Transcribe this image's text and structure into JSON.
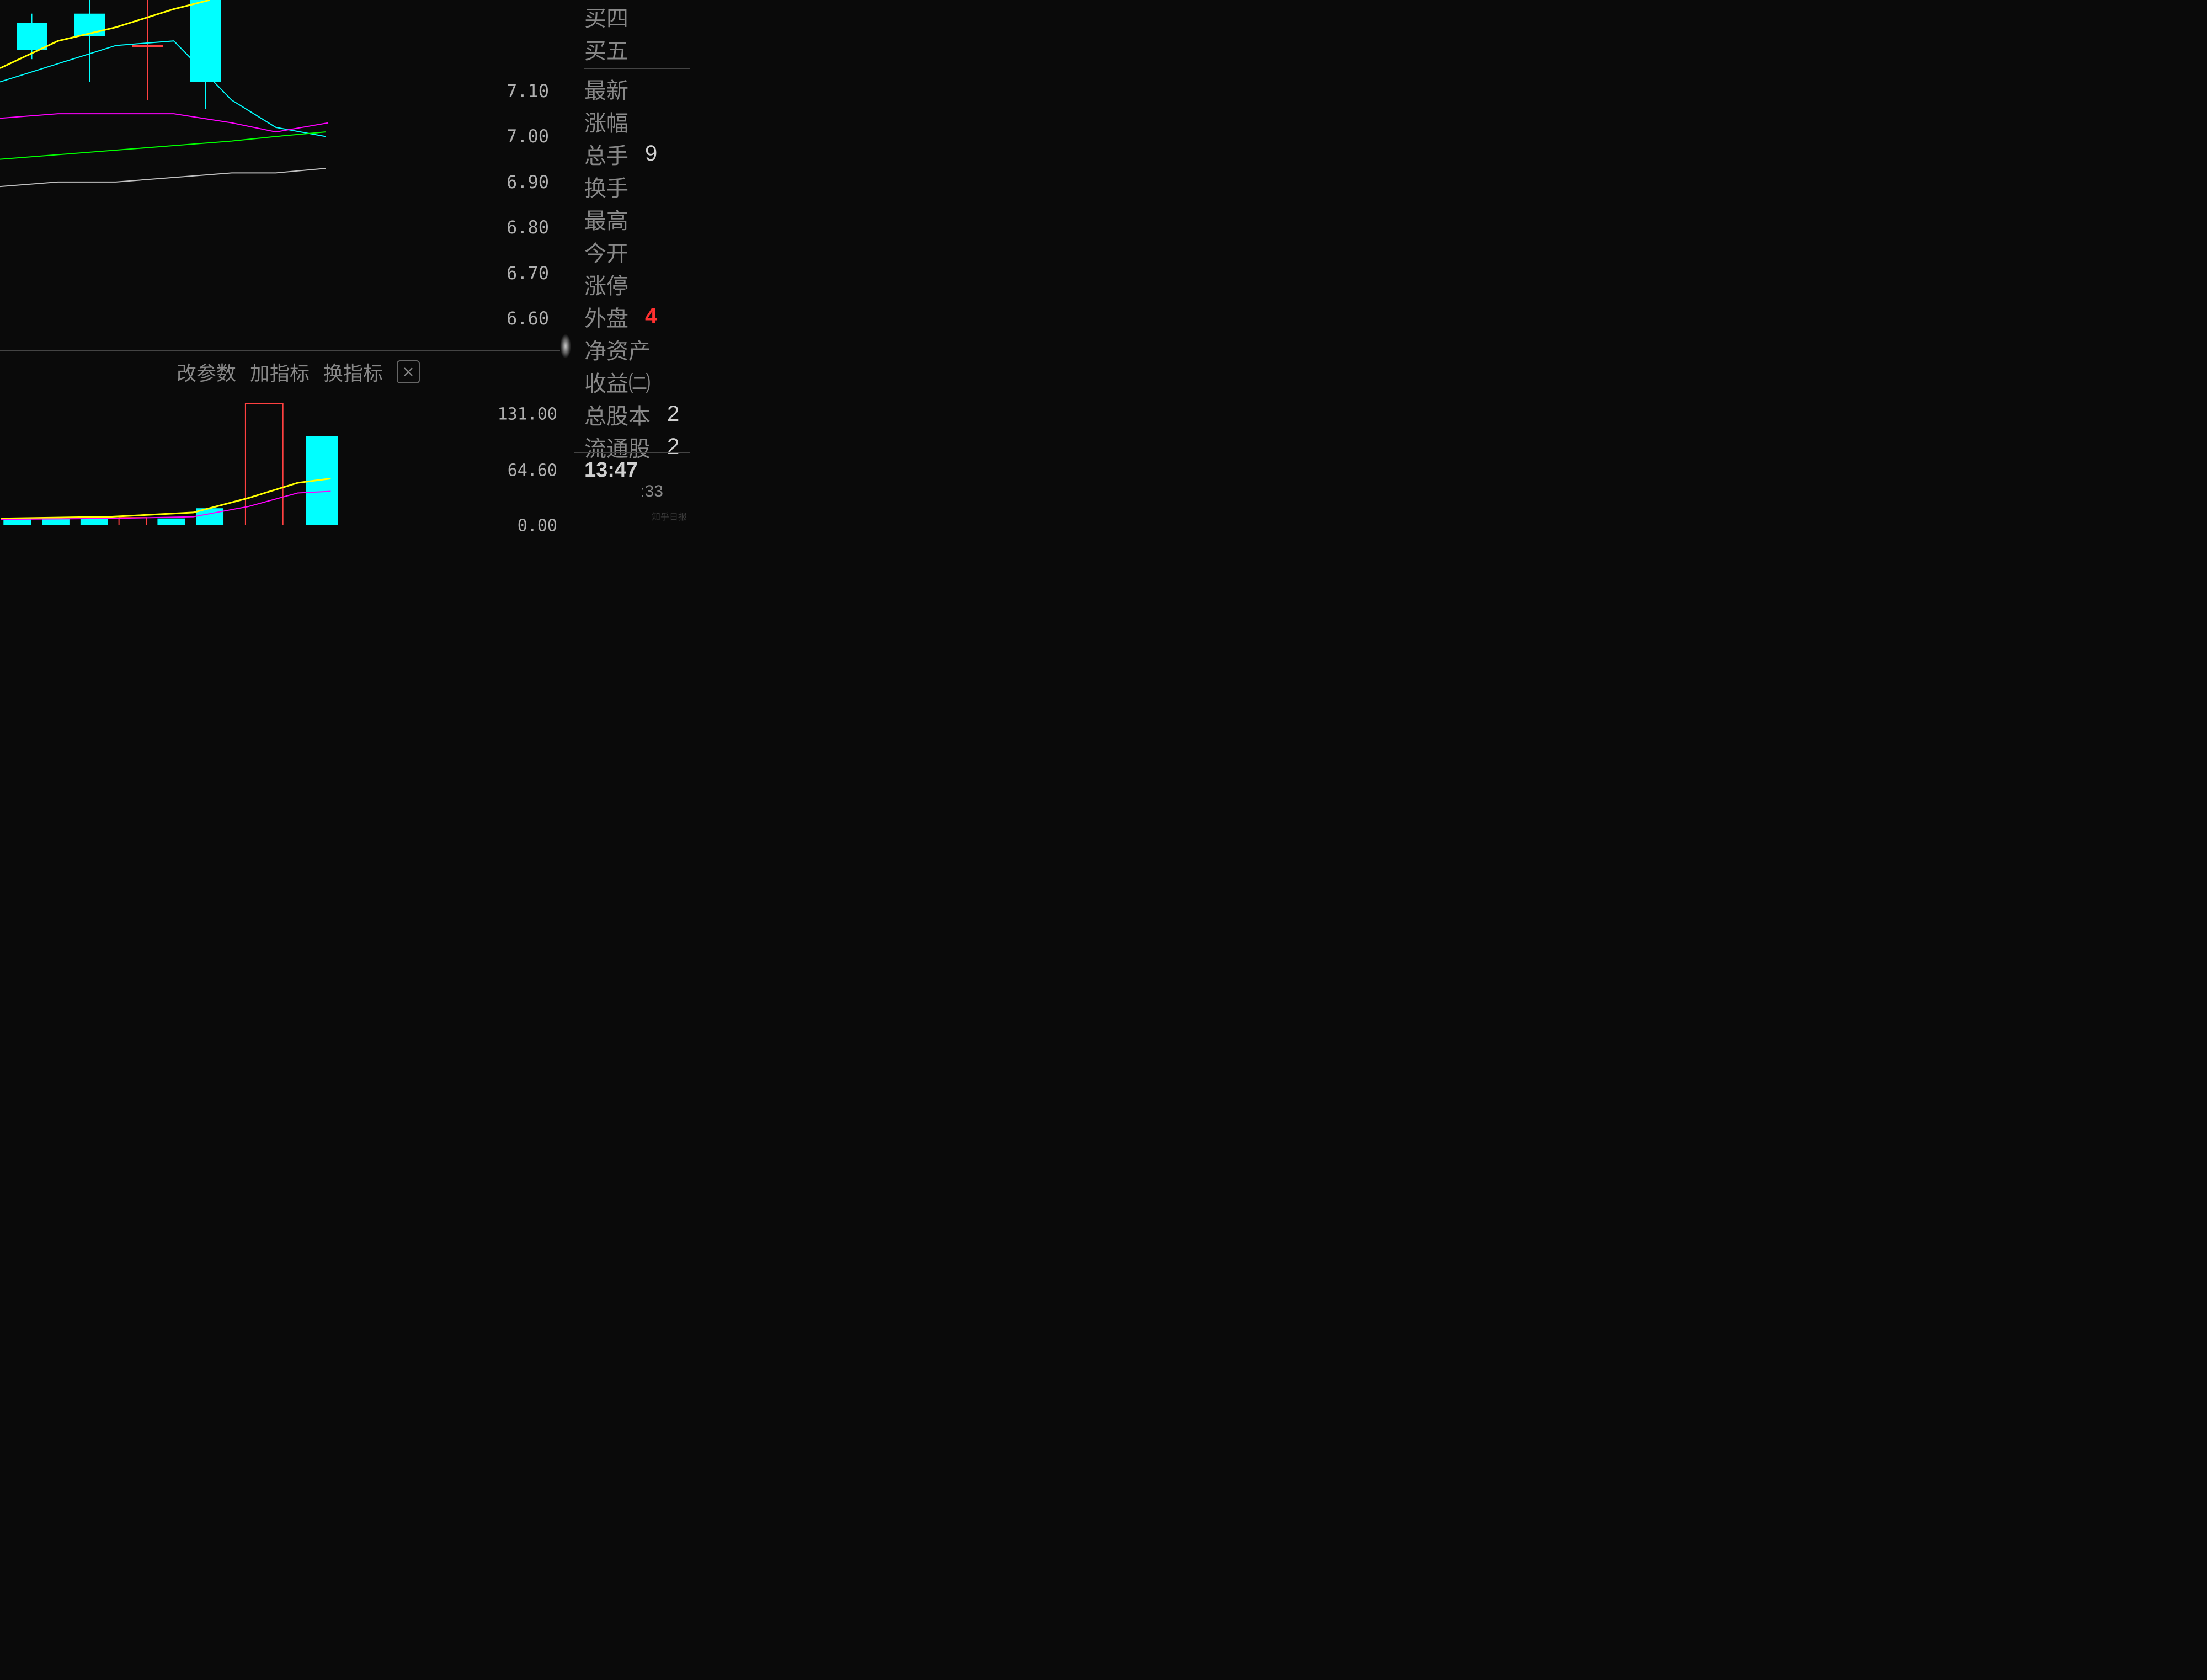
{
  "chart": {
    "type": "candlestick",
    "background_color": "#0a0a0a",
    "grid_color": "#333333",
    "y_ticks": [
      7.1,
      7.0,
      6.9,
      6.8,
      6.7,
      6.6
    ],
    "y_min": 6.53,
    "y_max": 7.3,
    "candles": [
      {
        "x": 30,
        "open": 7.19,
        "close": 7.25,
        "high": 7.27,
        "low": 7.17,
        "color": "#00ffff",
        "width": 55
      },
      {
        "x": 135,
        "open": 7.22,
        "close": 7.27,
        "high": 7.32,
        "low": 7.12,
        "color": "#00ffff",
        "width": 55
      },
      {
        "x": 240,
        "open": 7.2,
        "close": 7.2,
        "high": 7.3,
        "low": 7.08,
        "color": "#ff4040",
        "width": 55,
        "hollow": true
      },
      {
        "x": 345,
        "open": 7.12,
        "close": 7.3,
        "high": 7.32,
        "low": 7.06,
        "color": "#00ffff",
        "width": 55
      }
    ],
    "ma_lines": [
      {
        "color": "#ffff00",
        "width": 3,
        "points": [
          [
            0,
            7.15
          ],
          [
            105,
            7.21
          ],
          [
            210,
            7.24
          ],
          [
            315,
            7.28
          ],
          [
            380,
            7.3
          ]
        ]
      },
      {
        "color": "#00ffff",
        "width": 2,
        "points": [
          [
            0,
            7.12
          ],
          [
            105,
            7.16
          ],
          [
            210,
            7.2
          ],
          [
            315,
            7.21
          ],
          [
            420,
            7.08
          ],
          [
            500,
            7.02
          ],
          [
            590,
            7.0
          ]
        ]
      },
      {
        "color": "#ff00ff",
        "width": 2,
        "points": [
          [
            0,
            7.04
          ],
          [
            105,
            7.05
          ],
          [
            210,
            7.05
          ],
          [
            315,
            7.05
          ],
          [
            420,
            7.03
          ],
          [
            500,
            7.01
          ],
          [
            595,
            7.03
          ]
        ]
      },
      {
        "color": "#00ff00",
        "width": 2,
        "points": [
          [
            0,
            6.95
          ],
          [
            105,
            6.96
          ],
          [
            210,
            6.97
          ],
          [
            315,
            6.98
          ],
          [
            420,
            6.99
          ],
          [
            500,
            7.0
          ],
          [
            590,
            7.01
          ]
        ]
      },
      {
        "color": "#c0c0c0",
        "width": 2,
        "points": [
          [
            0,
            6.89
          ],
          [
            105,
            6.9
          ],
          [
            210,
            6.9
          ],
          [
            315,
            6.91
          ],
          [
            420,
            6.92
          ],
          [
            500,
            6.92
          ],
          [
            590,
            6.93
          ]
        ]
      }
    ]
  },
  "volume": {
    "type": "bar",
    "y_ticks": [
      131.0,
      64.6,
      0.0
    ],
    "y_max": 160,
    "bars": [
      {
        "x": 5,
        "h": 8,
        "color": "#00ffff",
        "width": 50
      },
      {
        "x": 75,
        "h": 8,
        "color": "#00ffff",
        "width": 50
      },
      {
        "x": 145,
        "h": 8,
        "color": "#00ffff",
        "width": 50
      },
      {
        "x": 215,
        "h": 9,
        "color": "#ff4040",
        "width": 50,
        "hollow": true
      },
      {
        "x": 285,
        "h": 8,
        "color": "#00ffff",
        "width": 50
      },
      {
        "x": 355,
        "h": 20,
        "color": "#00ffff",
        "width": 50
      },
      {
        "x": 445,
        "h": 143,
        "color": "#ff4040",
        "width": 68,
        "hollow": true
      },
      {
        "x": 555,
        "h": 105,
        "color": "#00ffff",
        "width": 58
      }
    ],
    "ma_lines": [
      {
        "color": "#ffff00",
        "width": 3,
        "points": [
          [
            0,
            8
          ],
          [
            200,
            10
          ],
          [
            350,
            15
          ],
          [
            450,
            32
          ],
          [
            540,
            50
          ],
          [
            600,
            55
          ]
        ]
      },
      {
        "color": "#ff00ff",
        "width": 2,
        "points": [
          [
            0,
            7
          ],
          [
            200,
            8
          ],
          [
            350,
            10
          ],
          [
            450,
            22
          ],
          [
            540,
            38
          ],
          [
            600,
            40
          ]
        ]
      }
    ]
  },
  "toolbar": {
    "change_params": "改参数",
    "add_indicator": "加指标",
    "swap_indicator": "换指标"
  },
  "sidebar": {
    "rows": [
      {
        "label": "买四",
        "value": ""
      },
      {
        "label": "买五",
        "value": ""
      },
      {
        "label": "最新",
        "value": ""
      },
      {
        "label": "涨幅",
        "value": ""
      },
      {
        "label": "总手",
        "value": "9",
        "red": false
      },
      {
        "label": "换手",
        "value": ""
      },
      {
        "label": "最高",
        "value": ""
      },
      {
        "label": "今开",
        "value": ""
      },
      {
        "label": "涨停",
        "value": ""
      },
      {
        "label": "外盘",
        "value": "4",
        "red": true
      },
      {
        "label": "净资产",
        "value": ""
      },
      {
        "label": "收益㈡",
        "value": ""
      },
      {
        "label": "总股本",
        "value": "2"
      },
      {
        "label": "流通股",
        "value": "2"
      }
    ]
  },
  "time": {
    "main": "13:47",
    "sub": ":33"
  }
}
